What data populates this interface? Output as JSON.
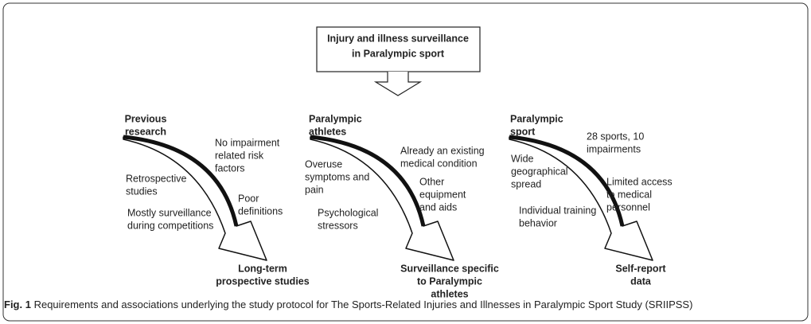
{
  "title_box": {
    "lines": [
      "Injury and illness surveillance",
      "in Paralympic sport"
    ]
  },
  "columns": [
    {
      "heading": [
        "Previous",
        "research"
      ],
      "items": [
        {
          "lines": [
            "No impairment",
            "related risk",
            "factors"
          ]
        },
        {
          "lines": [
            "Retrospective",
            "studies"
          ]
        },
        {
          "lines": [
            "Poor",
            "definitions"
          ]
        },
        {
          "lines": [
            "Mostly surveillance",
            "during competitions"
          ]
        }
      ],
      "outcome": [
        "Long-term",
        "prospective studies"
      ]
    },
    {
      "heading": [
        "Paralympic",
        "athletes"
      ],
      "items": [
        {
          "lines": [
            "Already an existing",
            "medical condition"
          ]
        },
        {
          "lines": [
            "Overuse",
            "symptoms and",
            "pain"
          ]
        },
        {
          "lines": [
            "Other",
            "equipment",
            "and aids"
          ]
        },
        {
          "lines": [
            "Psychological",
            "stressors"
          ]
        }
      ],
      "outcome": [
        "Surveillance specific",
        "to Paralympic",
        "athletes"
      ]
    },
    {
      "heading": [
        "Paralympic",
        "sport"
      ],
      "items": [
        {
          "lines": [
            "28 sports, 10",
            "impairments"
          ]
        },
        {
          "lines": [
            "Wide",
            "geographical",
            "spread"
          ]
        },
        {
          "lines": [
            "Limited access",
            "to medical",
            "personnel"
          ]
        },
        {
          "lines": [
            "Individual training",
            "behavior"
          ]
        }
      ],
      "outcome": [
        "Self-report",
        "data"
      ]
    }
  ],
  "caption": {
    "label": "Fig. 1",
    "text": "Requirements and associations underlying the study protocol for The Sports-Related Injuries and Illnesses in Paralympic Sport Study (SRIIPSS)"
  }
}
